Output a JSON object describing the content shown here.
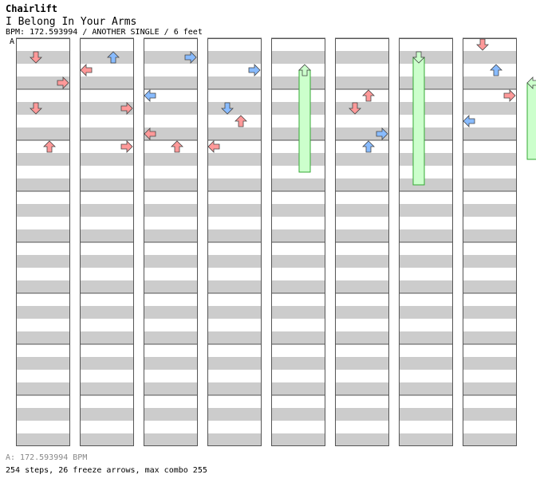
{
  "header": {
    "artist": "Chairlift",
    "title": "I Belong In Your Arms",
    "subtitle": "BPM: 172.593994 / ANOTHER SINGLE / 6 feet",
    "marker": "A"
  },
  "footer": {
    "bpm_line": "A: 172.593994 BPM",
    "stats_line": "254 steps, 26 freeze arrows, max combo 255"
  },
  "colors": {
    "band": "#cccccc",
    "border": "#555555",
    "red_arrow": "#ff9999",
    "blue_arrow": "#88bbff",
    "freeze": "#ccffcc",
    "freeze_border": "#33aa33"
  },
  "chart_data": {
    "type": "step-chart",
    "lanes": [
      "left",
      "down",
      "up",
      "right"
    ],
    "columns": 8,
    "measures_per_column": 8,
    "notes": [
      [
        1,
        1,
        1,
        "red"
      ],
      [
        1,
        3,
        3,
        "red"
      ],
      [
        1,
        5,
        1,
        "red"
      ],
      [
        1,
        8,
        2,
        "red"
      ],
      [
        2,
        1,
        2,
        "blue"
      ],
      [
        2,
        2,
        0,
        "red"
      ],
      [
        2,
        5,
        3,
        "red"
      ],
      [
        2,
        8,
        3,
        "red"
      ],
      [
        3,
        1,
        3,
        "blue"
      ],
      [
        3,
        4,
        0,
        "blue"
      ],
      [
        3,
        7,
        0,
        "red"
      ],
      [
        3,
        8,
        2,
        "red"
      ],
      [
        4,
        2,
        3,
        "blue"
      ],
      [
        4,
        5,
        1,
        "blue"
      ],
      [
        4,
        6,
        2,
        "red"
      ],
      [
        4,
        8,
        0,
        "red"
      ],
      [
        6,
        4,
        2,
        "red"
      ],
      [
        6,
        5,
        1,
        "red"
      ],
      [
        6,
        7,
        3,
        "blue"
      ],
      [
        6,
        8,
        2,
        "blue"
      ],
      [
        8,
        0,
        1,
        "red"
      ],
      [
        8,
        2,
        2,
        "blue"
      ],
      [
        8,
        4,
        3,
        "red"
      ],
      [
        8,
        6,
        0,
        "blue"
      ]
    ],
    "freezes": [
      [
        5,
        2,
        2,
        8
      ],
      [
        7,
        1,
        1,
        10
      ],
      [
        9,
        0,
        3,
        6
      ]
    ]
  }
}
